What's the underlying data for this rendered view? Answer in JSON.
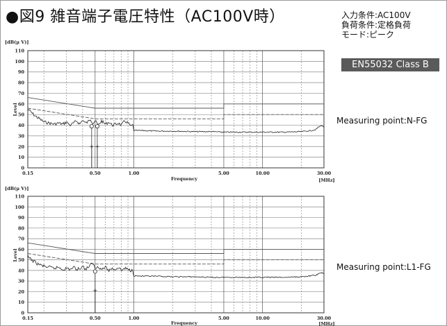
{
  "header": {
    "title": "●図9 雑音端子電圧特性（AC100V時）",
    "conditions": [
      "入力条件:AC100V",
      "負荷条件:定格負荷",
      "モード:ピーク"
    ],
    "standard": "EN55032 Class B"
  },
  "chart_data": [
    {
      "type": "line",
      "ylabel": "[dB(μ V)]",
      "yaxis_side_label": "Level",
      "xlabel": "Frequency",
      "x_unit": "[MHz]",
      "x_scale": "log",
      "xlim": [
        0.15,
        30
      ],
      "ylim": [
        0,
        110
      ],
      "x_ticks": [
        0.15,
        0.5,
        1,
        5,
        10,
        30
      ],
      "x_tick_labels": [
        "0.15",
        "0.50",
        "1.00",
        "5.00",
        "10.00",
        "30.00"
      ],
      "y_ticks": [
        0,
        10,
        20,
        30,
        40,
        50,
        60,
        70,
        80,
        90,
        100,
        110
      ],
      "y_tick_labels": [
        "0",
        "10",
        "20",
        "30",
        "40",
        "50",
        "60",
        "70",
        "80",
        "90",
        "100",
        "110"
      ],
      "grid": true,
      "annotation": "Measuring point:N-FG",
      "limits": [
        {
          "kind": "qp",
          "points": [
            [
              0.15,
              66
            ],
            [
              0.5,
              56
            ],
            [
              5,
              56
            ],
            [
              5,
              60
            ],
            [
              30,
              60
            ]
          ]
        },
        {
          "kind": "av",
          "points": [
            [
              0.15,
              56
            ],
            [
              0.5,
              46
            ],
            [
              5,
              46
            ],
            [
              5,
              50
            ],
            [
              30,
              50
            ]
          ]
        }
      ],
      "series": [
        {
          "points": [
            [
              0.15,
              55
            ],
            [
              0.16,
              52
            ],
            [
              0.17,
              49
            ],
            [
              0.18,
              47
            ],
            [
              0.19,
              45
            ],
            [
              0.2,
              43
            ],
            [
              0.22,
              42
            ],
            [
              0.24,
              41
            ],
            [
              0.26,
              42
            ],
            [
              0.28,
              41
            ],
            [
              0.3,
              43
            ],
            [
              0.32,
              40
            ],
            [
              0.34,
              42
            ],
            [
              0.36,
              44
            ],
            [
              0.38,
              41
            ],
            [
              0.4,
              45
            ],
            [
              0.42,
              42
            ],
            [
              0.44,
              43
            ],
            [
              0.46,
              46
            ],
            [
              0.48,
              42
            ],
            [
              0.5,
              44
            ],
            [
              0.53,
              40
            ],
            [
              0.56,
              44
            ],
            [
              0.6,
              41
            ],
            [
              0.64,
              43
            ],
            [
              0.68,
              40
            ],
            [
              0.72,
              41
            ],
            [
              0.76,
              42
            ],
            [
              0.8,
              40
            ],
            [
              0.85,
              44
            ],
            [
              0.9,
              42
            ],
            [
              0.95,
              39
            ],
            [
              0.98,
              40
            ],
            [
              1.0,
              35
            ],
            [
              1.2,
              35
            ],
            [
              1.5,
              34.5
            ],
            [
              2,
              34.5
            ],
            [
              3,
              34
            ],
            [
              4,
              34
            ],
            [
              5,
              33.5
            ],
            [
              6,
              33.5
            ],
            [
              8,
              33.5
            ],
            [
              10,
              33.5
            ],
            [
              12,
              33.5
            ],
            [
              15,
              33.5
            ],
            [
              20,
              34
            ],
            [
              22,
              34.5
            ],
            [
              24,
              35
            ],
            [
              26,
              36
            ],
            [
              27,
              38
            ],
            [
              28,
              39
            ],
            [
              29,
              40
            ],
            [
              30,
              38
            ]
          ]
        }
      ],
      "markers": [
        {
          "kind": "qp",
          "x": 0.47,
          "y": 39
        },
        {
          "kind": "qp",
          "x": 0.52,
          "y": 39
        },
        {
          "kind": "av",
          "x": 0.47,
          "y": 20
        },
        {
          "kind": "av",
          "x": 0.52,
          "y": 20
        }
      ]
    },
    {
      "type": "line",
      "ylabel": "[dB(μ V)]",
      "yaxis_side_label": "Level",
      "xlabel": "Frequency",
      "x_unit": "[MHz]",
      "x_scale": "log",
      "xlim": [
        0.15,
        30
      ],
      "ylim": [
        0,
        110
      ],
      "x_ticks": [
        0.15,
        0.5,
        1,
        5,
        10,
        30
      ],
      "x_tick_labels": [
        "0.15",
        "0.50",
        "1.00",
        "5.00",
        "10.00",
        "30.00"
      ],
      "y_ticks": [
        0,
        10,
        20,
        30,
        40,
        50,
        60,
        70,
        80,
        90,
        100,
        110
      ],
      "y_tick_labels": [
        "0",
        "10",
        "20",
        "30",
        "40",
        "50",
        "60",
        "70",
        "80",
        "90",
        "100",
        "110"
      ],
      "grid": true,
      "annotation": "Measuring point:L1-FG",
      "limits": [
        {
          "kind": "qp",
          "points": [
            [
              0.15,
              66
            ],
            [
              0.5,
              56
            ],
            [
              5,
              56
            ],
            [
              5,
              60
            ],
            [
              30,
              60
            ]
          ]
        },
        {
          "kind": "av",
          "points": [
            [
              0.15,
              56
            ],
            [
              0.5,
              46
            ],
            [
              5,
              46
            ],
            [
              5,
              50
            ],
            [
              30,
              50
            ]
          ]
        }
      ],
      "series": [
        {
          "points": [
            [
              0.15,
              53
            ],
            [
              0.16,
              50
            ],
            [
              0.17,
              48
            ],
            [
              0.18,
              46
            ],
            [
              0.19,
              45
            ],
            [
              0.2,
              44
            ],
            [
              0.22,
              43
            ],
            [
              0.24,
              42
            ],
            [
              0.26,
              43
            ],
            [
              0.28,
              41
            ],
            [
              0.3,
              42
            ],
            [
              0.32,
              41
            ],
            [
              0.34,
              43
            ],
            [
              0.36,
              41
            ],
            [
              0.38,
              42
            ],
            [
              0.4,
              44
            ],
            [
              0.42,
              41
            ],
            [
              0.44,
              43
            ],
            [
              0.46,
              45
            ],
            [
              0.48,
              47
            ],
            [
              0.5,
              42
            ],
            [
              0.53,
              44
            ],
            [
              0.56,
              41
            ],
            [
              0.6,
              43
            ],
            [
              0.64,
              40
            ],
            [
              0.68,
              42
            ],
            [
              0.72,
              41
            ],
            [
              0.76,
              43
            ],
            [
              0.8,
              40
            ],
            [
              0.85,
              42
            ],
            [
              0.9,
              41
            ],
            [
              0.95,
              40
            ],
            [
              0.98,
              41
            ],
            [
              1.0,
              35
            ],
            [
              1.2,
              34.5
            ],
            [
              1.5,
              34.5
            ],
            [
              2,
              34
            ],
            [
              3,
              34
            ],
            [
              4,
              33.5
            ],
            [
              5,
              33.5
            ],
            [
              6,
              33.5
            ],
            [
              8,
              33.5
            ],
            [
              10,
              33.5
            ],
            [
              12,
              33.5
            ],
            [
              15,
              33.5
            ],
            [
              20,
              34
            ],
            [
              22,
              34.5
            ],
            [
              24,
              35
            ],
            [
              26,
              35.5
            ],
            [
              27,
              36.5
            ],
            [
              28,
              37.5
            ],
            [
              29,
              38
            ],
            [
              30,
              37
            ]
          ]
        }
      ],
      "markers": [
        {
          "kind": "qp",
          "x": 0.5,
          "y": 39
        },
        {
          "kind": "av",
          "x": 0.5,
          "y": 21
        }
      ]
    }
  ]
}
